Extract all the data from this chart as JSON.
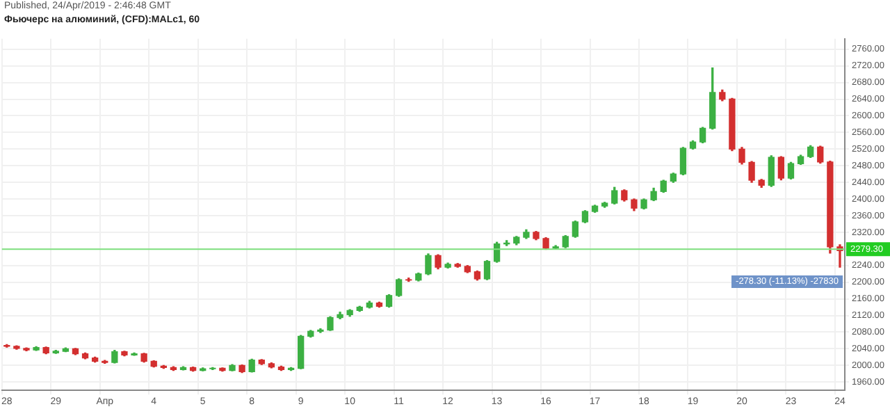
{
  "chart_data": {
    "type": "candlestick",
    "title": "Фьючерс на алюминий, (CFD):MALc1, 60",
    "annotations": [
      "Published, 24/Apr/2019 - 2:46:48 GMT",
      "-278.30 (-11.13%) -27830"
    ],
    "categories": [
      "28",
      null,
      null,
      null,
      null,
      "29",
      null,
      null,
      null,
      null,
      "Апр",
      null,
      null,
      null,
      null,
      "4",
      null,
      null,
      null,
      null,
      "5",
      null,
      null,
      null,
      null,
      "8",
      null,
      null,
      null,
      null,
      "9",
      null,
      null,
      null,
      null,
      "10",
      null,
      null,
      null,
      null,
      "11",
      null,
      null,
      null,
      null,
      "12",
      null,
      null,
      null,
      null,
      "13",
      null,
      null,
      null,
      null,
      "16",
      null,
      null,
      null,
      null,
      "17",
      null,
      null,
      null,
      null,
      "18",
      null,
      null,
      null,
      null,
      "19",
      null,
      null,
      null,
      null,
      "20",
      null,
      null,
      null,
      null,
      "23",
      null,
      null,
      null,
      null,
      "24"
    ],
    "ohlc": [
      [
        2048,
        2050,
        2044,
        2046
      ],
      [
        2046,
        2047,
        2039,
        2041
      ],
      [
        2041,
        2042,
        2035,
        2037
      ],
      [
        2037,
        2045,
        2036,
        2043
      ],
      [
        2043,
        2044,
        2028,
        2030
      ],
      [
        2030,
        2036,
        2029,
        2034
      ],
      [
        2034,
        2042,
        2033,
        2040
      ],
      [
        2040,
        2041,
        2026,
        2028
      ],
      [
        2028,
        2030,
        2016,
        2018
      ],
      [
        2018,
        2020,
        2008,
        2010
      ],
      [
        2010,
        2012,
        2005,
        2007
      ],
      [
        2007,
        2036,
        2006,
        2033
      ],
      [
        2033,
        2034,
        2023,
        2025
      ],
      [
        2025,
        2030,
        2024,
        2028
      ],
      [
        2028,
        2029,
        2008,
        2010
      ],
      [
        2010,
        2011,
        1996,
        1998
      ],
      [
        1998,
        2000,
        1993,
        1995
      ],
      [
        1995,
        1997,
        1988,
        1990
      ],
      [
        1990,
        1997,
        1989,
        1995
      ],
      [
        1995,
        1996,
        1986,
        1988
      ],
      [
        1988,
        1994,
        1987,
        1992
      ],
      [
        1992,
        1995,
        1990,
        1993
      ],
      [
        1993,
        1994,
        1986,
        1988
      ],
      [
        1988,
        2002,
        1987,
        2000
      ],
      [
        2000,
        2001,
        1983,
        1985
      ],
      [
        1985,
        2015,
        1984,
        2013
      ],
      [
        2013,
        2014,
        2002,
        2004
      ],
      [
        2004,
        2006,
        1994,
        1996
      ],
      [
        1996,
        1998,
        1988,
        1990
      ],
      [
        1990,
        1995,
        1988,
        1993
      ],
      [
        1993,
        2072,
        1992,
        2070
      ],
      [
        2070,
        2084,
        2068,
        2082
      ],
      [
        2082,
        2088,
        2079,
        2085
      ],
      [
        2085,
        2117,
        2084,
        2115
      ],
      [
        2115,
        2128,
        2112,
        2122
      ],
      [
        2122,
        2134,
        2118,
        2132
      ],
      [
        2132,
        2142,
        2130,
        2140
      ],
      [
        2140,
        2154,
        2138,
        2150
      ],
      [
        2150,
        2152,
        2140,
        2142
      ],
      [
        2142,
        2170,
        2140,
        2168
      ],
      [
        2168,
        2208,
        2166,
        2206
      ],
      [
        2206,
        2210,
        2202,
        2205
      ],
      [
        2205,
        2222,
        2203,
        2220
      ],
      [
        2220,
        2268,
        2218,
        2264
      ],
      [
        2264,
        2266,
        2232,
        2236
      ],
      [
        2236,
        2246,
        2234,
        2243
      ],
      [
        2243,
        2245,
        2236,
        2238
      ],
      [
        2238,
        2240,
        2223,
        2225
      ],
      [
        2225,
        2227,
        2205,
        2208
      ],
      [
        2208,
        2252,
        2206,
        2250
      ],
      [
        2250,
        2296,
        2248,
        2292
      ],
      [
        2292,
        2300,
        2288,
        2294
      ],
      [
        2294,
        2310,
        2290,
        2308
      ],
      [
        2308,
        2326,
        2305,
        2320
      ],
      [
        2320,
        2322,
        2302,
        2305
      ],
      [
        2305,
        2307,
        2279,
        2282
      ],
      [
        2282,
        2288,
        2280,
        2285
      ],
      [
        2285,
        2312,
        2283,
        2310
      ],
      [
        2310,
        2347,
        2308,
        2345
      ],
      [
        2345,
        2372,
        2343,
        2370
      ],
      [
        2370,
        2385,
        2368,
        2383
      ],
      [
        2383,
        2392,
        2380,
        2390
      ],
      [
        2390,
        2428,
        2388,
        2420
      ],
      [
        2420,
        2422,
        2395,
        2398
      ],
      [
        2398,
        2400,
        2372,
        2378
      ],
      [
        2378,
        2400,
        2376,
        2398
      ],
      [
        2398,
        2426,
        2396,
        2418
      ],
      [
        2418,
        2445,
        2416,
        2443
      ],
      [
        2443,
        2462,
        2440,
        2460
      ],
      [
        2460,
        2524,
        2458,
        2522
      ],
      [
        2522,
        2540,
        2520,
        2537
      ],
      [
        2537,
        2572,
        2535,
        2570
      ],
      [
        2570,
        2715,
        2568,
        2656
      ],
      [
        2656,
        2662,
        2636,
        2640
      ],
      [
        2640,
        2642,
        2516,
        2520
      ],
      [
        2520,
        2524,
        2484,
        2488
      ],
      [
        2488,
        2490,
        2440,
        2445
      ],
      [
        2445,
        2447,
        2428,
        2433
      ],
      [
        2433,
        2504,
        2430,
        2500
      ],
      [
        2500,
        2502,
        2446,
        2450
      ],
      [
        2450,
        2488,
        2448,
        2485
      ],
      [
        2485,
        2505,
        2483,
        2502
      ],
      [
        2502,
        2528,
        2500,
        2525
      ],
      [
        2525,
        2527,
        2486,
        2489
      ],
      [
        2489,
        2491,
        2270,
        2285
      ],
      [
        2285,
        2290,
        2236,
        2276
      ]
    ],
    "colors": [
      "#d32f2f",
      "#d32f2f",
      "#d32f2f",
      "#3cb043",
      "#d32f2f",
      "#3cb043",
      "#3cb043",
      "#d32f2f",
      "#d32f2f",
      "#d32f2f",
      "#d32f2f",
      "#3cb043",
      "#d32f2f",
      "#3cb043",
      "#d32f2f",
      "#d32f2f",
      "#d32f2f",
      "#d32f2f",
      "#3cb043",
      "#d32f2f",
      "#3cb043",
      "#3cb043",
      "#d32f2f",
      "#3cb043",
      "#d32f2f",
      "#3cb043",
      "#d32f2f",
      "#d32f2f",
      "#d32f2f",
      "#3cb043",
      "#3cb043",
      "#3cb043",
      "#3cb043",
      "#3cb043",
      "#3cb043",
      "#3cb043",
      "#3cb043",
      "#3cb043",
      "#d32f2f",
      "#3cb043",
      "#3cb043",
      "#d32f2f",
      "#3cb043",
      "#3cb043",
      "#d32f2f",
      "#3cb043",
      "#d32f2f",
      "#d32f2f",
      "#d32f2f",
      "#3cb043",
      "#3cb043",
      "#3cb043",
      "#3cb043",
      "#3cb043",
      "#d32f2f",
      "#d32f2f",
      "#3cb043",
      "#3cb043",
      "#3cb043",
      "#3cb043",
      "#3cb043",
      "#3cb043",
      "#3cb043",
      "#d32f2f",
      "#d32f2f",
      "#3cb043",
      "#3cb043",
      "#3cb043",
      "#3cb043",
      "#3cb043",
      "#3cb043",
      "#3cb043",
      "#3cb043",
      "#d32f2f",
      "#d32f2f",
      "#d32f2f",
      "#d32f2f",
      "#d32f2f",
      "#3cb043",
      "#d32f2f",
      "#3cb043",
      "#3cb043",
      "#3cb043",
      "#d32f2f",
      "#d32f2f",
      "#d32f2f"
    ],
    "ylim": [
      1940,
      2785
    ],
    "yticks": [
      {
        "value": 1960,
        "label": "1960.00"
      },
      {
        "value": 2000,
        "label": "2000.00"
      },
      {
        "value": 2040,
        "label": "2040.00"
      },
      {
        "value": 2080,
        "label": "2080.00"
      },
      {
        "value": 2120,
        "label": "2120.00"
      },
      {
        "value": 2160,
        "label": "2160.00"
      },
      {
        "value": 2200,
        "label": "2200.00"
      },
      {
        "value": 2240,
        "label": "2240.00"
      },
      {
        "value": 2280,
        "label": null
      },
      {
        "value": 2320,
        "label": "2320.00"
      },
      {
        "value": 2360,
        "label": "2360.00"
      },
      {
        "value": 2400,
        "label": "2400.00"
      },
      {
        "value": 2440,
        "label": "2440.00"
      },
      {
        "value": 2480,
        "label": "2480.00"
      },
      {
        "value": 2520,
        "label": "2520.00"
      },
      {
        "value": 2560,
        "label": "2560.00"
      },
      {
        "value": 2600,
        "label": "2600.00"
      },
      {
        "value": 2640,
        "label": "2640.00"
      },
      {
        "value": 2680,
        "label": "2680.00"
      },
      {
        "value": 2720,
        "label": "2720.00"
      },
      {
        "value": 2760,
        "label": "2760.00"
      }
    ],
    "ref_lines": [
      {
        "axis": "y",
        "value": 2279.3,
        "label": "2279.30",
        "color": "#7ee07e"
      }
    ],
    "grid": true,
    "legend": false
  }
}
